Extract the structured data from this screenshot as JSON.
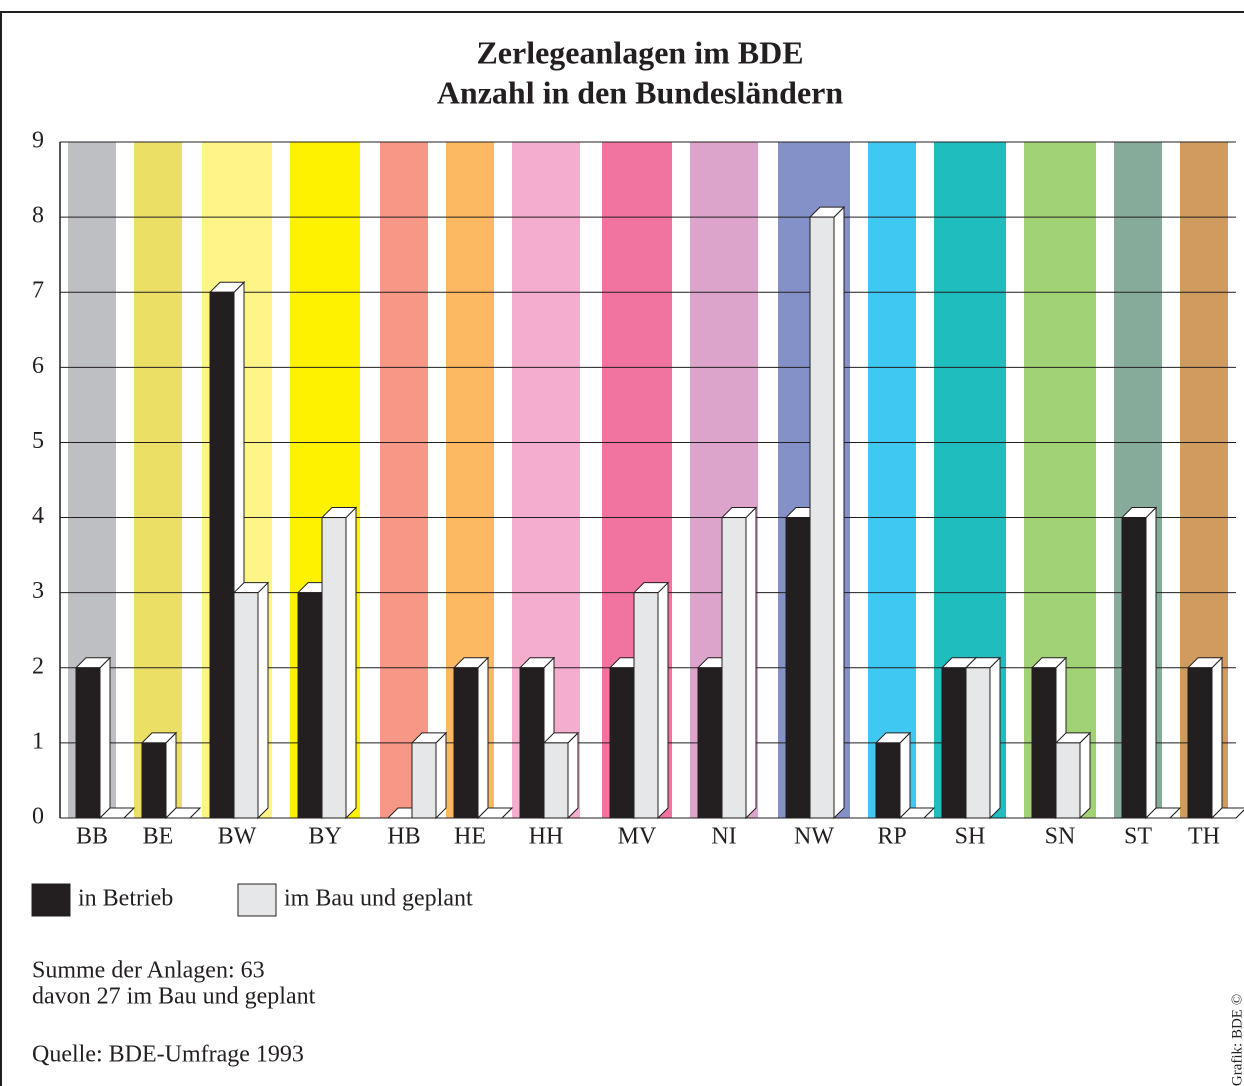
{
  "chart_data": {
    "type": "bar3d",
    "title": "Zerlegeanlagen im BDE",
    "subtitle": "Anzahl in den Bundesländern",
    "categories": [
      "BB",
      "BE",
      "BW",
      "BY",
      "HB",
      "HE",
      "HH",
      "MV",
      "NI",
      "NW",
      "RP",
      "SH",
      "SN",
      "ST",
      "TH"
    ],
    "category_colors": [
      "#bebfc3",
      "#ebdf66",
      "#fef588",
      "#fff200",
      "#f79886",
      "#fdb961",
      "#f4adcd",
      "#f173a0",
      "#dca4ca",
      "#8490c8",
      "#3fc8f2",
      "#1fbdbd",
      "#a2d276",
      "#86ab9b",
      "#cf9b5e"
    ],
    "series": [
      {
        "name": "in Betrieb",
        "color": "#231f20",
        "values": [
          2,
          1,
          7,
          3,
          0,
          2,
          2,
          2,
          2,
          4,
          1,
          2,
          2,
          4,
          2
        ]
      },
      {
        "name": "im Bau und geplant",
        "color": "#e6e7e8",
        "values": [
          0,
          0,
          3,
          4,
          1,
          0,
          1,
          3,
          4,
          8,
          0,
          2,
          1,
          0,
          0
        ]
      }
    ],
    "ylim": [
      0,
      9
    ],
    "yticks": [
      0,
      1,
      2,
      3,
      4,
      5,
      6,
      7,
      8,
      9
    ],
    "grid": true,
    "notes": [
      "Summe der Anlagen: 63",
      "davon 27 im Bau und geplant"
    ],
    "source": "Quelle: BDE-Umfrage 1993",
    "credit": "Grafik: BDE ©"
  }
}
